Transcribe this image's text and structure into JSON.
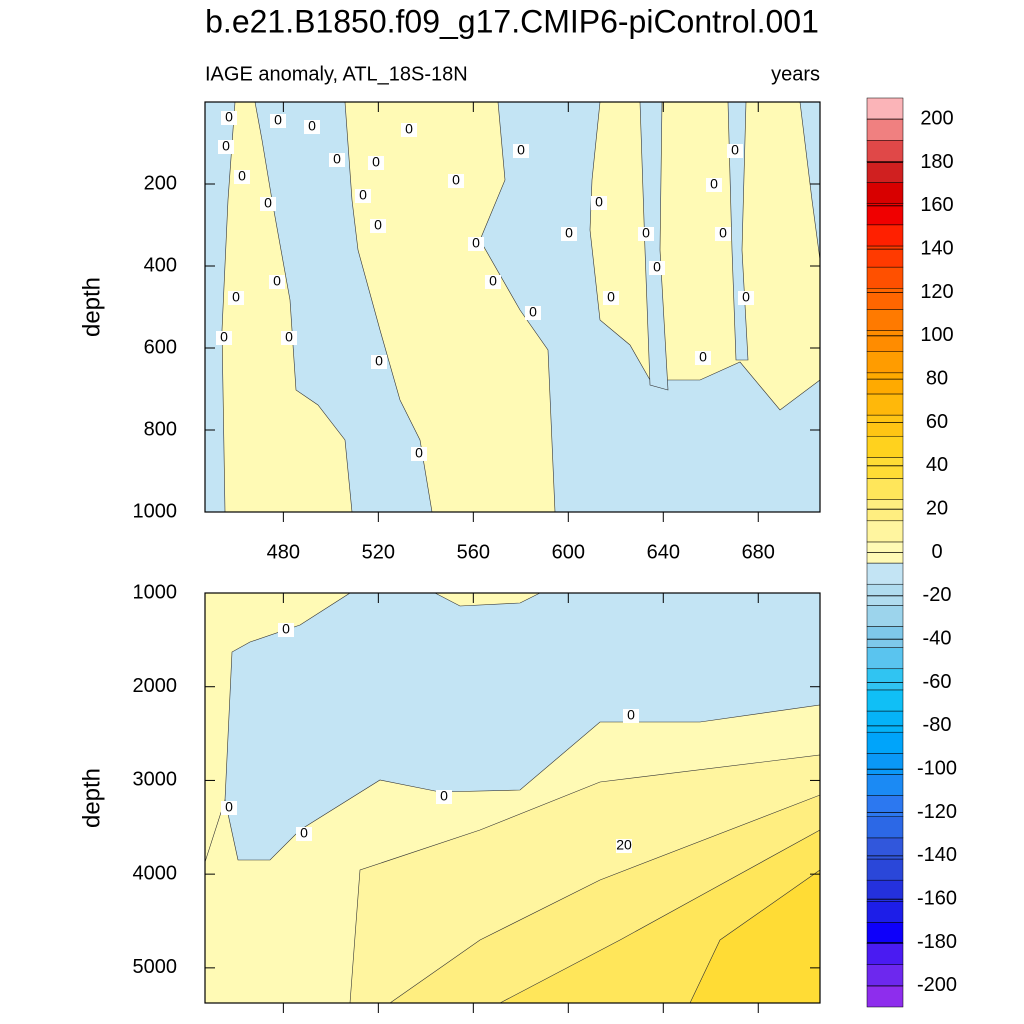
{
  "chart_data": {
    "type": "contour",
    "title": "b.e21.B1850.f09_g17.CMIP6-piControl.001",
    "subtitle_left": "IAGE anomaly, ATL_18S-18N",
    "subtitle_right": "years",
    "xlim": [
      447,
      706
    ],
    "xticks": [
      480,
      520,
      560,
      600,
      640,
      680
    ],
    "panels": [
      {
        "ylabel": "depth",
        "ylim": [
          0,
          1000
        ],
        "yticks": [
          200,
          400,
          600,
          800,
          1000
        ],
        "contour_labels": [
          "0",
          "0",
          "0",
          "0",
          "0",
          "0",
          "0",
          "0",
          "0",
          "0",
          "0",
          "0",
          "0",
          "0",
          "0",
          "0",
          "0",
          "0",
          "0",
          "0",
          "0",
          "0",
          "0",
          "0",
          "0",
          "0",
          "0",
          "0",
          "0",
          "0",
          "0",
          "0"
        ]
      },
      {
        "ylabel": "depth",
        "ylim": [
          1000,
          5375
        ],
        "yticks": [
          1000,
          2000,
          3000,
          4000,
          5000
        ],
        "contour_labels": [
          "0",
          "0",
          "0",
          "0",
          "0",
          "20"
        ]
      }
    ],
    "colorbar": {
      "levels": [
        -200,
        -180,
        -160,
        -140,
        -120,
        -100,
        -80,
        -60,
        -40,
        -20,
        0,
        20,
        40,
        60,
        80,
        100,
        120,
        140,
        160,
        180,
        200
      ],
      "colors": [
        "#8e2ded",
        "#6d28ee",
        "#4a1bf2",
        "#0e00fa",
        "#1d1ee8",
        "#2431dd",
        "#2a47d9",
        "#3157dc",
        "#2c68e6",
        "#2c78f0",
        "#1b8af4",
        "#0a98f7",
        "#00a4fa",
        "#05b3f8",
        "#10bff6",
        "#30c4f2",
        "#5ac4ef",
        "#7ec8ea",
        "#9cd4ec",
        "#b0dcef",
        "#c3e4f4",
        "#fffab5",
        "#fff59f",
        "#ffee80",
        "#ffe65a",
        "#ffdc35",
        "#ffd21e",
        "#ffc514",
        "#ffb80a",
        "#ffaa00",
        "#ff9c00",
        "#ff8c00",
        "#ff7a00",
        "#ff6600",
        "#ff5000",
        "#ff3a00",
        "#ff2000",
        "#f00000",
        "#d80000",
        "#d02020",
        "#e04848",
        "#f08080",
        "#fbb4b8"
      ]
    }
  }
}
